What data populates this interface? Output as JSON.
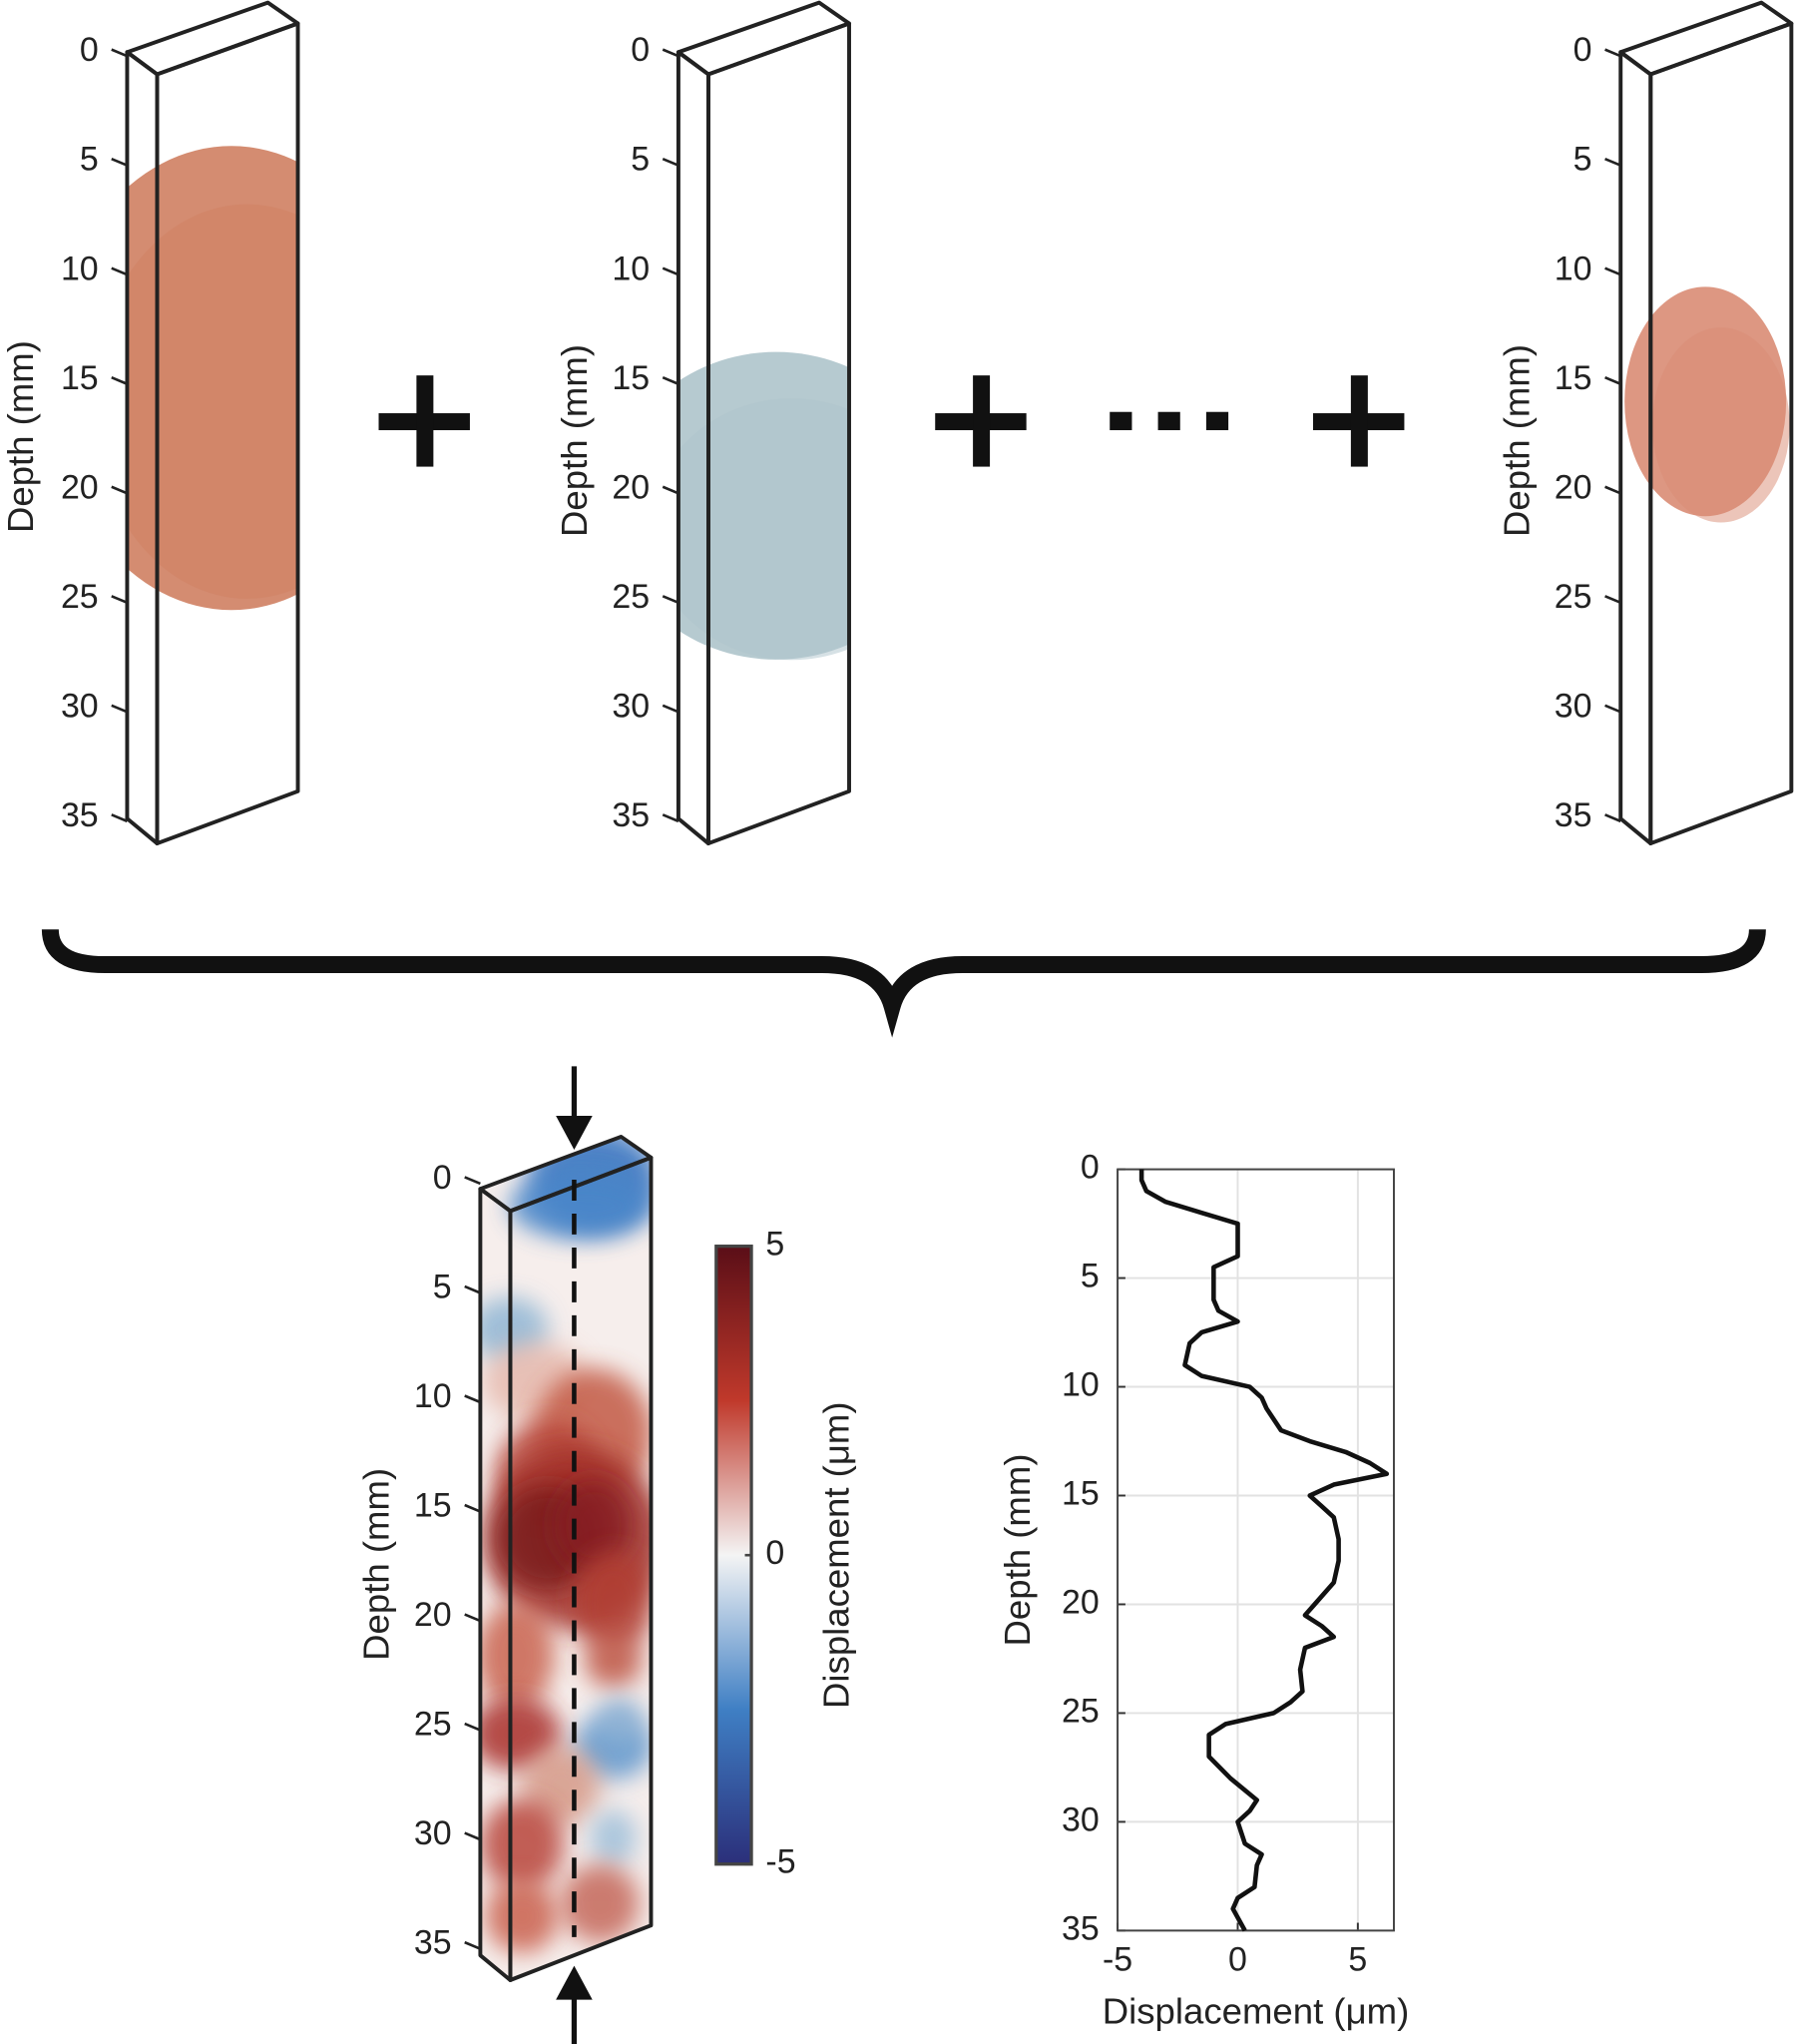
{
  "chart_data": [
    {
      "type": "volume",
      "ylabel": "Depth (mm)",
      "ylim": [
        0,
        35
      ],
      "yticks": [
        0,
        5,
        10,
        15,
        20,
        25,
        30,
        35
      ],
      "color": "#cf7f62"
    },
    {
      "type": "volume",
      "ylabel": "Depth (mm)",
      "ylim": [
        0,
        35
      ],
      "yticks": [
        0,
        5,
        10,
        15,
        20,
        25,
        30,
        35
      ],
      "color": "#aec4cb"
    },
    {
      "type": "volume",
      "ylabel": "Depth (mm)",
      "ylim": [
        0,
        35
      ],
      "yticks": [
        0,
        5,
        10,
        15,
        20,
        25,
        30,
        35
      ],
      "color": "#d98c74"
    },
    {
      "type": "volume",
      "ylabel": "Depth (mm)",
      "ylim": [
        0,
        35
      ],
      "yticks": [
        0,
        5,
        10,
        15,
        20,
        25,
        30,
        35
      ]
    },
    {
      "type": "colorbar",
      "ylabel": "Displacement (μm)",
      "ylim": [
        -5,
        5
      ],
      "yticks": [
        -5,
        0,
        5
      ],
      "colors": [
        "#2b2f7a",
        "#3f7fc4",
        "#f4f4f4",
        "#c0392b",
        "#5a0e17"
      ]
    },
    {
      "type": "line",
      "xlabel": "Displacement (μm)",
      "ylabel": "Depth (mm)",
      "swap_axes": true,
      "grid": true,
      "color": "#111111",
      "x": [
        0,
        0.5,
        1,
        1.5,
        2,
        2.5,
        3,
        4,
        4.5,
        5,
        6,
        6.5,
        7,
        7.5,
        8,
        9,
        9.5,
        10,
        10.5,
        11,
        12,
        12.5,
        13,
        13.5,
        14,
        14.5,
        15,
        15.5,
        16,
        17,
        18,
        19,
        20,
        20.5,
        21,
        21.5,
        22,
        23,
        24,
        24.5,
        25,
        25.5,
        26,
        27,
        28,
        29,
        29.5,
        30,
        31,
        31.5,
        32,
        33,
        33.5,
        34,
        35
      ],
      "values": [
        -4,
        -4,
        -3.8,
        -3,
        -1.5,
        0,
        0,
        0,
        -1,
        -1,
        -1,
        -0.8,
        0,
        -1.5,
        -2,
        -2.2,
        -1.5,
        0.5,
        1,
        1.2,
        1.8,
        3,
        4.5,
        5.5,
        6.2,
        4,
        3,
        3.5,
        4,
        4.2,
        4.2,
        4,
        3.2,
        2.8,
        3.5,
        4,
        2.8,
        2.6,
        2.7,
        2.2,
        1.5,
        -0.5,
        -1.2,
        -1.2,
        -0.3,
        0.8,
        0.5,
        0,
        0.3,
        1,
        0.8,
        0.7,
        0,
        -0.2,
        0.3
      ],
      "xlim": [
        0,
        35
      ],
      "xticks": [
        0,
        5,
        10,
        15,
        20,
        25,
        30,
        35
      ],
      "ylim": [
        -5,
        6.5
      ],
      "yticks": [
        -5,
        0,
        5
      ]
    }
  ]
}
